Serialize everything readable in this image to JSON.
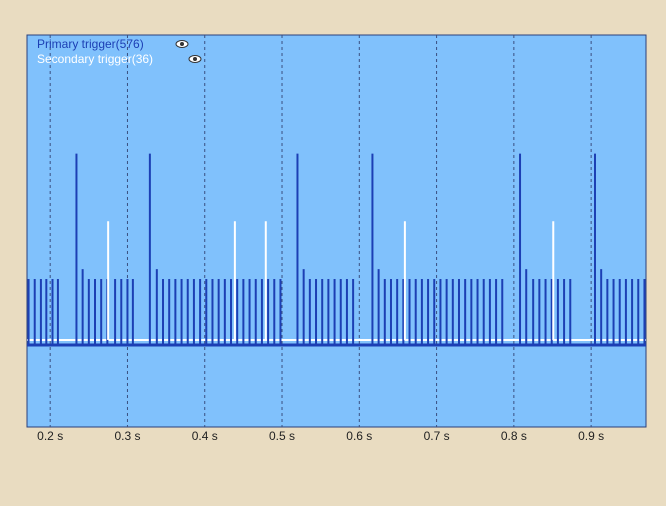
{
  "chart_data": {
    "type": "event",
    "xlim": [
      0.17,
      0.971
    ],
    "xticks": [
      {
        "value": 0.2,
        "label": "0.2 s"
      },
      {
        "value": 0.3,
        "label": "0.3 s"
      },
      {
        "value": 0.4,
        "label": "0.4 s"
      },
      {
        "value": 0.5,
        "label": "0.5 s"
      },
      {
        "value": 0.6,
        "label": "0.6 s"
      },
      {
        "value": 0.7,
        "label": "0.7 s"
      },
      {
        "value": 0.8,
        "label": "0.8 s"
      },
      {
        "value": 0.9,
        "label": "0.9 s"
      }
    ],
    "grid": true,
    "series": [
      {
        "name": "Primary trigger(576)",
        "color": "#1c3fb4",
        "x": [
          0.172,
          0.18,
          0.188,
          0.195,
          0.203,
          0.21,
          0.234,
          0.242,
          0.25,
          0.258,
          0.266,
          0.274,
          0.284,
          0.292,
          0.3,
          0.307,
          0.329,
          0.338,
          0.346,
          0.354,
          0.362,
          0.37,
          0.378,
          0.386,
          0.394,
          0.402,
          0.41,
          0.418,
          0.426,
          0.434,
          0.442,
          0.45,
          0.458,
          0.466,
          0.474,
          0.482,
          0.49,
          0.498,
          0.52,
          0.528,
          0.536,
          0.544,
          0.552,
          0.56,
          0.568,
          0.576,
          0.584,
          0.592,
          0.617,
          0.625,
          0.633,
          0.641,
          0.649,
          0.657,
          0.665,
          0.673,
          0.681,
          0.689,
          0.697,
          0.705,
          0.713,
          0.721,
          0.729,
          0.737,
          0.745,
          0.753,
          0.761,
          0.769,
          0.777,
          0.785,
          0.808,
          0.816,
          0.825,
          0.833,
          0.841,
          0.849,
          0.857,
          0.865,
          0.873,
          0.905,
          0.913,
          0.921,
          0.929,
          0.937,
          0.945,
          0.953,
          0.961,
          0.969
        ],
        "values": [
          1,
          1,
          1,
          1,
          1,
          1,
          2.9,
          1.15,
          1,
          1,
          1,
          1,
          1,
          1,
          1,
          1,
          2.9,
          1.15,
          1,
          1,
          1,
          1,
          1,
          1,
          1,
          1,
          1,
          1,
          1,
          1,
          1,
          1,
          1,
          1,
          1,
          1,
          1,
          1,
          2.9,
          1.15,
          1,
          1,
          1,
          1,
          1,
          1,
          1,
          1,
          2.9,
          1.15,
          1,
          1,
          1,
          1,
          1,
          1,
          1,
          1,
          1,
          1,
          1,
          1,
          1,
          1,
          1,
          1,
          1,
          1,
          1,
          1,
          2.9,
          1.15,
          1,
          1,
          1,
          1,
          1,
          1,
          1,
          2.9,
          1.15,
          1,
          1,
          1,
          1,
          1,
          1,
          1
        ]
      },
      {
        "name": "Secondary trigger(36)",
        "color": "#ffffff",
        "x": [
          0.275,
          0.439,
          0.479,
          0.659,
          0.851
        ],
        "values": [
          1.8,
          1.8,
          1.8,
          1.8,
          1.8
        ]
      }
    ]
  }
}
